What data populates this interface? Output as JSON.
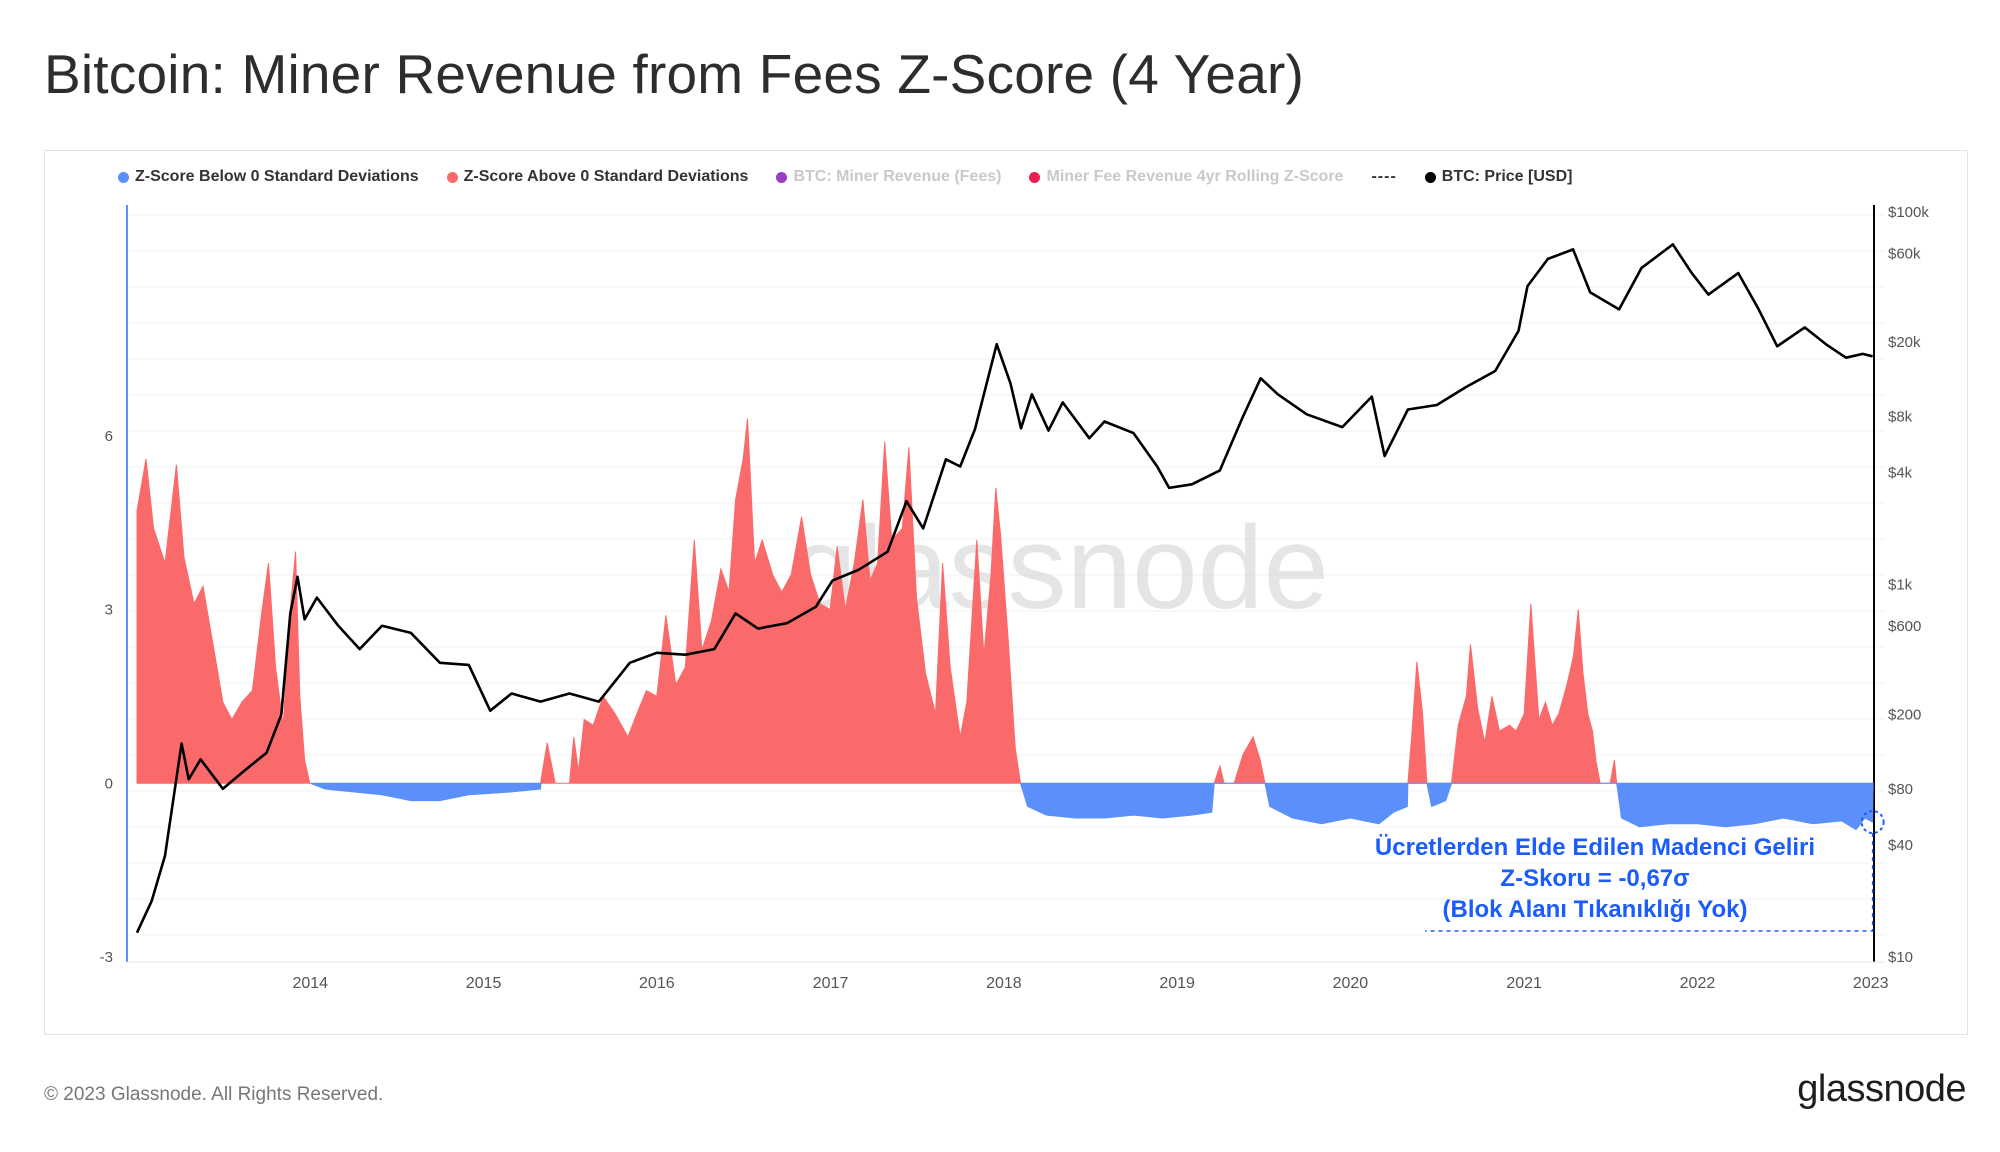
{
  "title": "Bitcoin: Miner Revenue from Fees Z-Score (4 Year)",
  "legend": [
    {
      "label": "Z-Score Below 0 Standard Deviations",
      "color": "#5b8ff9",
      "active": true
    },
    {
      "label": "Z-Score Above 0 Standard Deviations",
      "color": "#fa6a6a",
      "active": true
    },
    {
      "label": "BTC: Miner Revenue (Fees)",
      "color": "#9a3fc4",
      "active": false
    },
    {
      "label": "Miner Fee Revenue 4yr Rolling Z-Score",
      "color": "#ea1f4f",
      "active": false
    },
    {
      "label": "BTC: Price [USD]",
      "color": "#000000",
      "active": true
    }
  ],
  "legend_dash": "----",
  "watermark": "glassnode",
  "annotation": {
    "line1": "Ücretlerden Elde Edilen Madenci Geliri",
    "line2": "Z-Skoru = -0,67σ",
    "line3": "(Blok Alanı Tıkanıklığı Yok)",
    "color": "#1a5cff"
  },
  "footer": {
    "copyright": "© 2023 Glassnode. All Rights Reserved.",
    "logo": "glassnode"
  },
  "chart_data": {
    "type": "area",
    "x_ticks": [
      "2014",
      "2015",
      "2016",
      "2017",
      "2018",
      "2019",
      "2020",
      "2021",
      "2022",
      "2023"
    ],
    "y_left": {
      "ticks": [
        "6",
        "3",
        "0",
        "-3"
      ],
      "range": [
        -3,
        9
      ]
    },
    "y_right": {
      "scale": "log",
      "ticks": [
        "$100k",
        "$60k",
        "$20k",
        "$8k",
        "$4k",
        "$1k",
        "$600",
        "$200",
        "$80",
        "$40",
        "$10"
      ],
      "tick_values": [
        100000,
        60000,
        20000,
        8000,
        4000,
        1000,
        600,
        200,
        80,
        40,
        10
      ],
      "range": [
        10,
        100000
      ]
    },
    "x_range": [
      "2013-01-01",
      "2023-01-10"
    ],
    "series": [
      {
        "name": "Z-Score Above 0 Standard Deviations",
        "color": "#fa6a6a",
        "points": [
          [
            "2013-01-01",
            4.7
          ],
          [
            "2013-01-20",
            5.6
          ],
          [
            "2013-02-05",
            4.4
          ],
          [
            "2013-03-01",
            3.8
          ],
          [
            "2013-03-25",
            5.5
          ],
          [
            "2013-04-10",
            3.9
          ],
          [
            "2013-05-01",
            3.1
          ],
          [
            "2013-05-20",
            3.4
          ],
          [
            "2013-06-10",
            2.4
          ],
          [
            "2013-07-01",
            1.4
          ],
          [
            "2013-07-20",
            1.1
          ],
          [
            "2013-08-10",
            1.4
          ],
          [
            "2013-09-01",
            1.6
          ],
          [
            "2013-09-20",
            2.9
          ],
          [
            "2013-10-05",
            3.8
          ],
          [
            "2013-10-20",
            2.0
          ],
          [
            "2013-11-05",
            1.0
          ],
          [
            "2013-11-20",
            3.0
          ],
          [
            "2013-12-01",
            4.0
          ],
          [
            "2013-12-10",
            1.5
          ],
          [
            "2013-12-20",
            0.4
          ],
          [
            "2013-12-31",
            0.0
          ]
        ]
      },
      {
        "name": "Z-Score Above 0 Standard Deviations",
        "color": "#fa6a6a",
        "points": [
          [
            "2015-05-01",
            0.0
          ],
          [
            "2015-05-15",
            0.7
          ],
          [
            "2015-06-01",
            0.0
          ],
          [
            "2015-07-01",
            0.0
          ],
          [
            "2015-07-10",
            0.8
          ],
          [
            "2015-07-20",
            0.2
          ],
          [
            "2015-08-01",
            1.1
          ],
          [
            "2015-08-20",
            1.0
          ],
          [
            "2015-09-10",
            1.5
          ],
          [
            "2015-10-05",
            1.2
          ],
          [
            "2015-11-01",
            0.8
          ],
          [
            "2015-11-20",
            1.2
          ],
          [
            "2015-12-10",
            1.6
          ],
          [
            "2016-01-01",
            1.5
          ],
          [
            "2016-01-20",
            2.9
          ],
          [
            "2016-02-10",
            1.7
          ],
          [
            "2016-03-01",
            2.0
          ],
          [
            "2016-03-20",
            4.2
          ],
          [
            "2016-04-05",
            2.3
          ],
          [
            "2016-04-25",
            2.8
          ],
          [
            "2016-05-15",
            3.7
          ],
          [
            "2016-06-01",
            3.3
          ],
          [
            "2016-06-15",
            4.9
          ],
          [
            "2016-07-01",
            5.6
          ],
          [
            "2016-07-10",
            6.3
          ],
          [
            "2016-07-25",
            3.8
          ],
          [
            "2016-08-10",
            4.2
          ],
          [
            "2016-09-01",
            3.6
          ],
          [
            "2016-09-20",
            3.3
          ],
          [
            "2016-10-10",
            3.6
          ],
          [
            "2016-11-01",
            4.6
          ],
          [
            "2016-11-20",
            3.6
          ],
          [
            "2016-12-10",
            3.1
          ],
          [
            "2016-12-31",
            3.0
          ],
          [
            "2017-01-15",
            4.1
          ],
          [
            "2017-02-01",
            3.0
          ],
          [
            "2017-02-20",
            3.8
          ],
          [
            "2017-03-10",
            4.9
          ],
          [
            "2017-03-25",
            3.5
          ],
          [
            "2017-04-10",
            3.8
          ],
          [
            "2017-04-25",
            5.9
          ],
          [
            "2017-05-10",
            4.2
          ],
          [
            "2017-06-01",
            4.4
          ],
          [
            "2017-06-15",
            5.8
          ],
          [
            "2017-07-01",
            3.2
          ],
          [
            "2017-07-20",
            1.9
          ],
          [
            "2017-08-10",
            1.2
          ],
          [
            "2017-08-25",
            3.8
          ],
          [
            "2017-09-10",
            2.0
          ],
          [
            "2017-10-01",
            0.8
          ],
          [
            "2017-10-15",
            1.4
          ],
          [
            "2017-11-05",
            4.2
          ],
          [
            "2017-11-20",
            2.2
          ],
          [
            "2017-12-05",
            3.6
          ],
          [
            "2017-12-15",
            5.1
          ],
          [
            "2017-12-25",
            4.3
          ],
          [
            "2018-01-10",
            2.5
          ],
          [
            "2018-01-25",
            0.6
          ],
          [
            "2018-02-05",
            0.0
          ]
        ]
      },
      {
        "name": "Z-Score Above 0 Standard Deviations",
        "color": "#fa6a6a",
        "points": [
          [
            "2019-03-20",
            0.0
          ],
          [
            "2019-04-01",
            0.3
          ],
          [
            "2019-04-10",
            0.0
          ],
          [
            "2019-05-01",
            0.0
          ],
          [
            "2019-05-20",
            0.5
          ],
          [
            "2019-06-10",
            0.8
          ],
          [
            "2019-06-25",
            0.4
          ],
          [
            "2019-07-05",
            0.0
          ]
        ]
      },
      {
        "name": "Z-Score Above 0 Standard Deviations",
        "color": "#fa6a6a",
        "points": [
          [
            "2020-05-01",
            0.0
          ],
          [
            "2020-05-10",
            0.9
          ],
          [
            "2020-05-20",
            2.1
          ],
          [
            "2020-06-01",
            1.2
          ],
          [
            "2020-06-10",
            0.0
          ],
          [
            "2020-08-01",
            0.0
          ],
          [
            "2020-08-15",
            1.0
          ],
          [
            "2020-09-01",
            1.5
          ],
          [
            "2020-09-10",
            2.4
          ],
          [
            "2020-09-25",
            1.3
          ],
          [
            "2020-10-10",
            0.7
          ],
          [
            "2020-10-25",
            1.5
          ],
          [
            "2020-11-10",
            0.9
          ],
          [
            "2020-12-01",
            1.0
          ],
          [
            "2020-12-15",
            0.9
          ],
          [
            "2021-01-01",
            1.2
          ],
          [
            "2021-01-15",
            3.1
          ],
          [
            "2021-02-01",
            1.1
          ],
          [
            "2021-02-15",
            1.4
          ],
          [
            "2021-03-01",
            1.0
          ],
          [
            "2021-03-15",
            1.2
          ],
          [
            "2021-04-01",
            1.7
          ],
          [
            "2021-04-15",
            2.2
          ],
          [
            "2021-04-25",
            3.0
          ],
          [
            "2021-05-05",
            1.9
          ],
          [
            "2021-05-15",
            1.2
          ],
          [
            "2021-05-25",
            0.9
          ],
          [
            "2021-06-01",
            0.4
          ],
          [
            "2021-06-10",
            0.0
          ],
          [
            "2021-07-01",
            0.0
          ],
          [
            "2021-07-10",
            0.4
          ],
          [
            "2021-07-15",
            0.0
          ]
        ]
      },
      {
        "name": "Z-Score Below 0 Standard Deviations",
        "color": "#5b8ff9",
        "points": [
          [
            "2014-01-01",
            0.0
          ],
          [
            "2014-02-01",
            -0.1
          ],
          [
            "2014-04-01",
            -0.15
          ],
          [
            "2014-06-01",
            -0.2
          ],
          [
            "2014-08-01",
            -0.3
          ],
          [
            "2014-10-01",
            -0.3
          ],
          [
            "2014-12-01",
            -0.2
          ],
          [
            "2015-03-01",
            -0.15
          ],
          [
            "2015-05-01",
            -0.1
          ],
          [
            "2015-05-02",
            0.0
          ]
        ]
      },
      {
        "name": "Z-Score Below 0 Standard Deviations",
        "color": "#5b8ff9",
        "points": [
          [
            "2018-02-05",
            0.0
          ],
          [
            "2018-02-20",
            -0.4
          ],
          [
            "2018-04-01",
            -0.55
          ],
          [
            "2018-06-01",
            -0.6
          ],
          [
            "2018-08-01",
            -0.6
          ],
          [
            "2018-10-01",
            -0.55
          ],
          [
            "2018-12-01",
            -0.6
          ],
          [
            "2019-02-01",
            -0.55
          ],
          [
            "2019-03-15",
            -0.5
          ],
          [
            "2019-03-20",
            0.0
          ],
          [
            "2019-07-05",
            0.0
          ],
          [
            "2019-07-15",
            -0.4
          ],
          [
            "2019-09-01",
            -0.6
          ],
          [
            "2019-11-01",
            -0.7
          ],
          [
            "2020-01-01",
            -0.6
          ],
          [
            "2020-03-01",
            -0.7
          ],
          [
            "2020-04-01",
            -0.5
          ],
          [
            "2020-04-30",
            -0.4
          ],
          [
            "2020-05-01",
            0.0
          ],
          [
            "2020-06-10",
            0.0
          ],
          [
            "2020-06-20",
            -0.4
          ],
          [
            "2020-07-20",
            -0.3
          ],
          [
            "2020-08-01",
            0.0
          ],
          [
            "2021-07-15",
            0.0
          ],
          [
            "2021-07-25",
            -0.6
          ],
          [
            "2021-09-01",
            -0.75
          ],
          [
            "2021-11-01",
            -0.7
          ],
          [
            "2022-01-01",
            -0.7
          ],
          [
            "2022-03-01",
            -0.75
          ],
          [
            "2022-05-01",
            -0.7
          ],
          [
            "2022-07-01",
            -0.6
          ],
          [
            "2022-09-01",
            -0.7
          ],
          [
            "2022-11-01",
            -0.65
          ],
          [
            "2022-12-01",
            -0.8
          ],
          [
            "2022-12-20",
            -0.6
          ],
          [
            "2023-01-05",
            -0.67
          ],
          [
            "2023-01-06",
            0.0
          ]
        ]
      },
      {
        "name": "BTC: Price [USD]",
        "color": "#000000",
        "scale": "right",
        "points": [
          [
            "2013-01-01",
            13.5
          ],
          [
            "2013-02-01",
            20
          ],
          [
            "2013-03-01",
            35
          ],
          [
            "2013-04-05",
            140
          ],
          [
            "2013-04-20",
            90
          ],
          [
            "2013-05-15",
            115
          ],
          [
            "2013-07-01",
            80
          ],
          [
            "2013-08-15",
            100
          ],
          [
            "2013-10-01",
            125
          ],
          [
            "2013-11-01",
            200
          ],
          [
            "2013-11-20",
            700
          ],
          [
            "2013-12-05",
            1100
          ],
          [
            "2013-12-20",
            650
          ],
          [
            "2014-01-15",
            850
          ],
          [
            "2014-03-01",
            600
          ],
          [
            "2014-04-15",
            450
          ],
          [
            "2014-06-01",
            600
          ],
          [
            "2014-08-01",
            550
          ],
          [
            "2014-10-01",
            380
          ],
          [
            "2014-12-01",
            370
          ],
          [
            "2015-01-15",
            210
          ],
          [
            "2015-03-01",
            260
          ],
          [
            "2015-05-01",
            235
          ],
          [
            "2015-07-01",
            260
          ],
          [
            "2015-09-01",
            235
          ],
          [
            "2015-11-05",
            380
          ],
          [
            "2016-01-01",
            430
          ],
          [
            "2016-03-01",
            420
          ],
          [
            "2016-05-01",
            450
          ],
          [
            "2016-06-15",
            700
          ],
          [
            "2016-08-01",
            580
          ],
          [
            "2016-10-01",
            620
          ],
          [
            "2016-12-01",
            760
          ],
          [
            "2017-01-05",
            1050
          ],
          [
            "2017-03-01",
            1200
          ],
          [
            "2017-05-01",
            1500
          ],
          [
            "2017-06-10",
            2800
          ],
          [
            "2017-07-15",
            2000
          ],
          [
            "2017-09-01",
            4700
          ],
          [
            "2017-10-01",
            4300
          ],
          [
            "2017-11-01",
            6800
          ],
          [
            "2017-12-17",
            19500
          ],
          [
            "2018-01-15",
            12000
          ],
          [
            "2018-02-06",
            6900
          ],
          [
            "2018-03-01",
            10500
          ],
          [
            "2018-04-05",
            6700
          ],
          [
            "2018-05-05",
            9500
          ],
          [
            "2018-06-30",
            6100
          ],
          [
            "2018-08-01",
            7500
          ],
          [
            "2018-10-01",
            6500
          ],
          [
            "2018-11-20",
            4300
          ],
          [
            "2018-12-15",
            3300
          ],
          [
            "2019-02-01",
            3450
          ],
          [
            "2019-04-01",
            4100
          ],
          [
            "2019-05-20",
            8000
          ],
          [
            "2019-06-26",
            12800
          ],
          [
            "2019-08-01",
            10500
          ],
          [
            "2019-10-01",
            8200
          ],
          [
            "2019-12-15",
            7000
          ],
          [
            "2020-02-15",
            10200
          ],
          [
            "2020-03-13",
            4900
          ],
          [
            "2020-05-01",
            8700
          ],
          [
            "2020-07-01",
            9200
          ],
          [
            "2020-09-01",
            11500
          ],
          [
            "2020-11-01",
            14000
          ],
          [
            "2020-12-20",
            23000
          ],
          [
            "2021-01-08",
            40000
          ],
          [
            "2021-02-20",
            56000
          ],
          [
            "2021-04-14",
            63000
          ],
          [
            "2021-05-20",
            37000
          ],
          [
            "2021-07-20",
            30000
          ],
          [
            "2021-09-05",
            50000
          ],
          [
            "2021-11-10",
            67000
          ],
          [
            "2021-12-20",
            47000
          ],
          [
            "2022-01-24",
            36000
          ],
          [
            "2022-03-28",
            47000
          ],
          [
            "2022-05-10",
            30000
          ],
          [
            "2022-06-18",
            19000
          ],
          [
            "2022-08-15",
            24000
          ],
          [
            "2022-10-01",
            19300
          ],
          [
            "2022-11-10",
            16500
          ],
          [
            "2022-12-15",
            17300
          ],
          [
            "2023-01-05",
            16800
          ]
        ]
      }
    ]
  }
}
